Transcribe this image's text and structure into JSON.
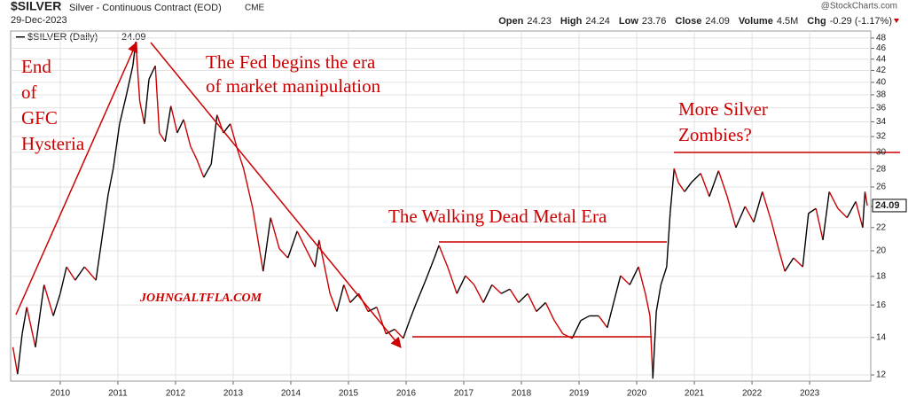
{
  "chart_data": {
    "type": "line",
    "header": {
      "symbol": "$SILVER",
      "name": "Silver - Continuous Contract (EOD)",
      "exchange": "CME",
      "date": "29-Dec-2023",
      "watermark": "@StockCharts.com",
      "quote": [
        {
          "label": "Open",
          "value": "24.23"
        },
        {
          "label": "High",
          "value": "24.24"
        },
        {
          "label": "Low",
          "value": "23.76"
        },
        {
          "label": "Close",
          "value": "24.09"
        },
        {
          "label": "Volume",
          "value": "4.5M"
        },
        {
          "label": "Chg",
          "value": "-0.29 (-1.17%)"
        }
      ]
    },
    "legend": "$SILVER (Daily)",
    "last_label": "24.09",
    "color": "#000000",
    "down_color": "#cc0000",
    "log_scale": true,
    "grid": true,
    "xlim": [
      2009.14,
      2024.06
    ],
    "xticks": [
      2010,
      2011,
      2012,
      2013,
      2014,
      2015,
      2016,
      2017,
      2018,
      2019,
      2020,
      2021,
      2022,
      2023
    ],
    "ylim": [
      11.7,
      49.4
    ],
    "yticks": [
      12,
      14,
      16,
      18,
      20,
      22,
      24,
      26,
      28,
      30,
      32,
      34,
      36,
      38,
      40,
      42,
      44,
      46,
      48
    ],
    "x": [
      2009.18,
      2009.26,
      2009.34,
      2009.42,
      2009.57,
      2009.72,
      2009.88,
      2010.0,
      2010.11,
      2010.26,
      2010.42,
      2010.62,
      2010.72,
      2010.83,
      2010.92,
      2011.03,
      2011.14,
      2011.26,
      2011.31,
      2011.38,
      2011.46,
      2011.54,
      2011.65,
      2011.72,
      2011.82,
      2011.92,
      2012.03,
      2012.14,
      2012.26,
      2012.37,
      2012.49,
      2012.62,
      2012.72,
      2012.83,
      2012.95,
      2013.08,
      2013.18,
      2013.34,
      2013.52,
      2013.65,
      2013.8,
      2013.95,
      2014.11,
      2014.26,
      2014.42,
      2014.49,
      2014.57,
      2014.68,
      2014.8,
      2014.92,
      2015.03,
      2015.18,
      2015.34,
      2015.49,
      2015.65,
      2015.8,
      2015.95,
      2016.06,
      2016.18,
      2016.34,
      2016.49,
      2016.57,
      2016.72,
      2016.88,
      2017.03,
      2017.18,
      2017.34,
      2017.49,
      2017.65,
      2017.8,
      2017.95,
      2018.11,
      2018.26,
      2018.42,
      2018.57,
      2018.72,
      2018.88,
      2019.03,
      2019.18,
      2019.34,
      2019.49,
      2019.6,
      2019.72,
      2019.88,
      2020.03,
      2020.15,
      2020.23,
      2020.28,
      2020.34,
      2020.42,
      2020.52,
      2020.58,
      2020.65,
      2020.72,
      2020.83,
      2020.95,
      2021.11,
      2021.26,
      2021.42,
      2021.57,
      2021.72,
      2021.88,
      2022.03,
      2022.18,
      2022.34,
      2022.46,
      2022.57,
      2022.72,
      2022.88,
      2022.98,
      2023.11,
      2023.23,
      2023.34,
      2023.49,
      2023.65,
      2023.8,
      2023.92,
      2023.96,
      2024.0
    ],
    "values": [
      13.45,
      12.04,
      14.21,
      15.86,
      13.45,
      17.39,
      15.3,
      16.77,
      18.72,
      17.72,
      18.72,
      17.72,
      20.9,
      25.16,
      28.05,
      33.72,
      37.64,
      42.83,
      47.27,
      36.98,
      33.72,
      40.52,
      42.83,
      32.49,
      31.34,
      36.3,
      32.49,
      34.32,
      30.75,
      29.11,
      27.05,
      28.58,
      34.98,
      32.49,
      33.72,
      30.2,
      28.05,
      23.8,
      18.38,
      22.92,
      20.18,
      19.42,
      21.68,
      20.18,
      18.72,
      20.9,
      19.07,
      16.77,
      15.58,
      17.39,
      16.16,
      16.77,
      15.58,
      15.86,
      14.21,
      14.48,
      13.95,
      15.01,
      16.16,
      17.72,
      19.42,
      20.45,
      18.72,
      16.77,
      18.05,
      17.39,
      16.16,
      17.39,
      16.77,
      17.08,
      16.16,
      16.77,
      15.58,
      16.16,
      15.01,
      14.21,
      13.95,
      15.01,
      15.3,
      15.3,
      14.58,
      16.16,
      18.05,
      17.39,
      18.72,
      16.77,
      15.3,
      11.82,
      15.58,
      17.39,
      18.72,
      23.33,
      28.05,
      26.5,
      25.5,
      26.5,
      27.5,
      25.0,
      27.8,
      25.0,
      22.0,
      24.0,
      22.5,
      25.5,
      22.5,
      20.18,
      18.38,
      19.42,
      18.72,
      23.33,
      23.8,
      20.9,
      25.5,
      23.8,
      22.92,
      24.5,
      22.0,
      25.5,
      24.09
    ],
    "annotations": [
      {
        "lines": [
          "End",
          "of",
          "GFC",
          "Hysteria"
        ]
      },
      {
        "lines": [
          "The Fed begins the era",
          "of market manipulation"
        ]
      },
      {
        "lines": [
          "More Silver",
          "Zombies?"
        ]
      },
      {
        "lines": [
          "The Walking Dead Metal Era"
        ]
      },
      {
        "lines": [
          "JOHNGALTFLA.COM"
        ]
      }
    ]
  }
}
